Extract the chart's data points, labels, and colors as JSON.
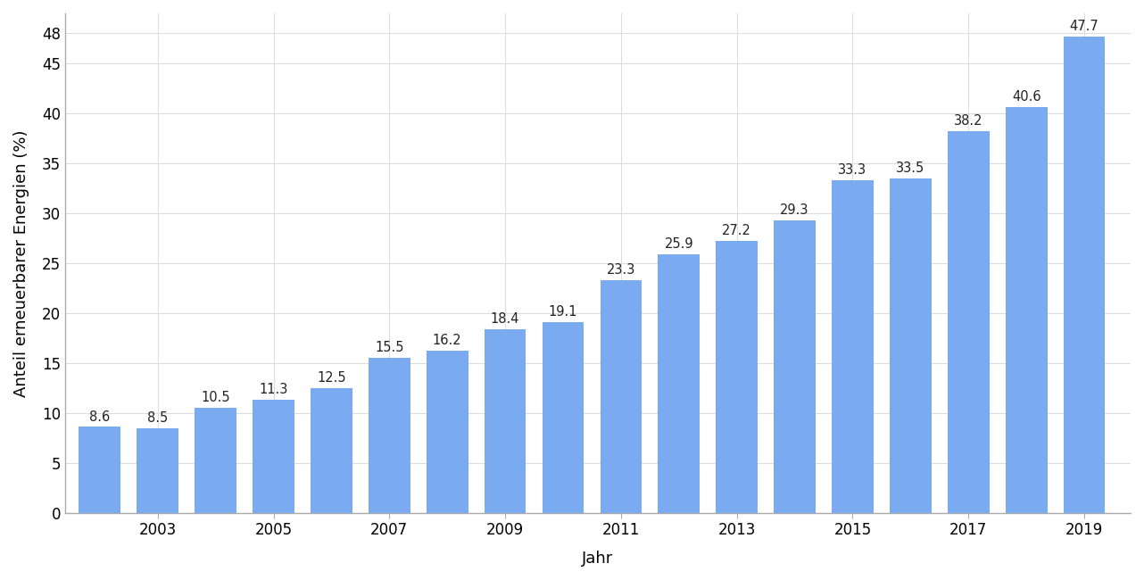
{
  "years": [
    2002,
    2003,
    2004,
    2005,
    2006,
    2007,
    2008,
    2009,
    2010,
    2011,
    2012,
    2013,
    2014,
    2015,
    2016,
    2017,
    2018,
    2019
  ],
  "values": [
    8.6,
    8.5,
    10.5,
    11.3,
    12.5,
    15.5,
    16.2,
    18.4,
    19.1,
    23.3,
    25.9,
    27.2,
    29.3,
    33.3,
    33.5,
    38.2,
    40.6,
    47.7
  ],
  "bar_color": "#7aabf0",
  "xlabel": "Jahr",
  "ylabel": "Anteil erneuerbarer Energien (%)",
  "ylim": [
    0,
    50
  ],
  "yticks": [
    0,
    5,
    10,
    15,
    20,
    25,
    30,
    35,
    40,
    45,
    48
  ],
  "background_color": "#ffffff",
  "grid_color": "#dddddd",
  "label_fontsize": 10.5,
  "axis_label_fontsize": 13,
  "tick_label_fontsize": 12,
  "bar_width": 0.72,
  "xlim_left": 2001.4,
  "xlim_right": 2019.8
}
